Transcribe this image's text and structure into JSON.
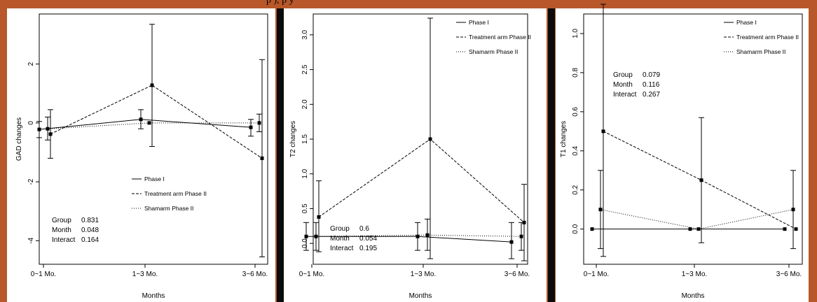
{
  "header_text": "p            ), p              y",
  "colors": {
    "background": "#b8572a",
    "panel": "#ffffff",
    "separator": "#0b0b0b",
    "ink": "#000000"
  },
  "chart_data": [
    {
      "type": "line",
      "xlabel": "Months",
      "ylabel": "GAD changes",
      "categories": [
        "0~1 Mo.",
        "1~3 Mo.",
        "3~6 Mo."
      ],
      "ylim": [
        -4.8,
        3.7
      ],
      "yticks": [
        -4,
        -2,
        0,
        2
      ],
      "grid": false,
      "legend": [
        "Phase I",
        "Treatment arm Phase II",
        "Shamarm Phase II"
      ],
      "legend_position": "lower-middle",
      "series": [
        {
          "name": "Phase I",
          "style": "solid",
          "values": [
            -0.22,
            0.12,
            -0.15
          ],
          "err_low": [
            -0.5,
            -0.2,
            -0.45
          ],
          "err_high": [
            0.05,
            0.45,
            0.12
          ]
        },
        {
          "name": "Treatment arm Phase II",
          "style": "dashed",
          "values": [
            -0.38,
            1.28,
            -1.2
          ],
          "err_low": [
            -1.2,
            -0.8,
            -4.55
          ],
          "err_high": [
            0.45,
            3.35,
            2.15
          ]
        },
        {
          "name": "Shamarm Phase II",
          "style": "dotted",
          "values": [
            -0.2,
            0.0,
            0.0
          ],
          "err_low": [
            -0.58,
            0.0,
            -0.3
          ],
          "err_high": [
            0.2,
            0.0,
            0.3
          ]
        }
      ],
      "stats": [
        {
          "label": "Group",
          "value": "0.831"
        },
        {
          "label": "Month",
          "value": "0.048"
        },
        {
          "label": "Interact",
          "value": "0.164"
        }
      ],
      "stats_position": "bottom-left"
    },
    {
      "type": "line",
      "xlabel": "Months",
      "ylabel": "T2 changes",
      "categories": [
        "0~1 Mo.",
        "1~3 Mo.",
        "3~6 Mo."
      ],
      "ylim": [
        -0.3,
        3.3
      ],
      "yticks": [
        0.0,
        0.5,
        1.0,
        1.5,
        2.0,
        2.5,
        3.0
      ],
      "grid": false,
      "legend": [
        "Phase I",
        "Treatment arm Phase II",
        "Shamarm Phase II"
      ],
      "legend_position": "top-right",
      "series": [
        {
          "name": "Phase I",
          "style": "solid",
          "values": [
            0.1,
            0.1,
            0.02
          ],
          "err_low": [
            -0.1,
            -0.1,
            -0.22
          ],
          "err_high": [
            0.3,
            0.3,
            0.3
          ]
        },
        {
          "name": "Treatment arm Phase II",
          "style": "dashed",
          "values": [
            0.38,
            1.5,
            0.3
          ],
          "err_low": [
            -0.12,
            -0.22,
            -0.25
          ],
          "err_high": [
            0.9,
            3.24,
            0.85
          ]
        },
        {
          "name": "Shamarm Phase II",
          "style": "dotted",
          "values": [
            0.1,
            0.12,
            0.1
          ],
          "err_low": [
            -0.1,
            -0.1,
            -0.1
          ],
          "err_high": [
            0.3,
            0.35,
            0.3
          ]
        }
      ],
      "stats": [
        {
          "label": "Group",
          "value": "0.6"
        },
        {
          "label": "Month",
          "value": "0.054"
        },
        {
          "label": "Interact",
          "value": "0.195"
        }
      ],
      "stats_position": "bottom-left"
    },
    {
      "type": "line",
      "xlabel": "Months",
      "ylabel": "T1 changes",
      "categories": [
        "0~1 Mo.",
        "1~3 Mo.",
        "3~6 Mo."
      ],
      "ylim": [
        -0.18,
        1.1
      ],
      "yticks": [
        0.0,
        0.2,
        0.4,
        0.6,
        0.8,
        1.0
      ],
      "grid": false,
      "legend": [
        "Phase I",
        "Treatment arm Phase II",
        "Shamarm Phase II"
      ],
      "legend_position": "top-right",
      "series": [
        {
          "name": "Phase I",
          "style": "solid",
          "values": [
            0.0,
            0.0,
            0.0
          ],
          "err_low": [
            0.0,
            0.0,
            0.0
          ],
          "err_high": [
            0.0,
            0.0,
            0.0
          ]
        },
        {
          "name": "Treatment arm Phase II",
          "style": "dashed",
          "values": [
            0.5,
            0.25,
            0.0
          ],
          "err_low": [
            -0.14,
            -0.07,
            0.0
          ],
          "err_high": [
            1.15,
            0.57,
            0.0
          ]
        },
        {
          "name": "Shamarm Phase II",
          "style": "dotted",
          "values": [
            0.1,
            0.0,
            0.1
          ],
          "err_low": [
            -0.1,
            0.0,
            -0.1
          ],
          "err_high": [
            0.3,
            0.0,
            0.3
          ]
        }
      ],
      "stats": [
        {
          "label": "Group",
          "value": "0.079"
        },
        {
          "label": "Month",
          "value": "0.116"
        },
        {
          "label": "Interact",
          "value": "0.267"
        }
      ],
      "stats_position": "top-left"
    }
  ]
}
